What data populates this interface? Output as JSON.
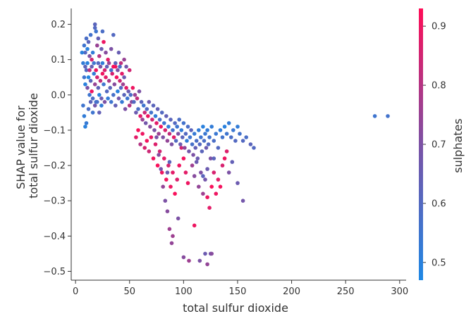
{
  "chart_data": {
    "type": "scatter",
    "title": "",
    "xlabel": "total sulfur dioxide",
    "ylabel_lines": [
      "SHAP value for",
      "total sulfur dioxide"
    ],
    "xlim": [
      -4,
      306
    ],
    "ylim": [
      -0.525,
      0.245
    ],
    "xticks": [
      0,
      50,
      100,
      150,
      200,
      250,
      300
    ],
    "xtick_labels": [
      "0",
      "50",
      "100",
      "150",
      "200",
      "250",
      "300"
    ],
    "yticks": [
      0.2,
      0.1,
      0.0,
      -0.1,
      -0.2,
      -0.3,
      -0.4,
      -0.5
    ],
    "ytick_labels": [
      "0.2",
      "0.1",
      "0.0",
      "−0.1",
      "−0.2",
      "−0.3",
      "−0.4",
      "−0.5"
    ],
    "colorbar": {
      "label": "sulphates",
      "range": [
        0.47,
        0.93
      ],
      "ticks": [
        0.5,
        0.6,
        0.7,
        0.8,
        0.9
      ],
      "tick_labels": [
        "0.5",
        "0.6",
        "0.7",
        "0.8",
        "0.9"
      ],
      "color_low": "#1e88e5",
      "color_high": "#ff0d57"
    },
    "grid": false,
    "points_xyc": [
      [
        8,
        0.14,
        0.55
      ],
      [
        9,
        0.12,
        0.6
      ],
      [
        10,
        0.16,
        0.58
      ],
      [
        11,
        0.13,
        0.5
      ],
      [
        12,
        0.15,
        0.62
      ],
      [
        13,
        0.11,
        0.7
      ],
      [
        14,
        0.17,
        0.56
      ],
      [
        15,
        0.1,
        0.85
      ],
      [
        16,
        0.12,
        0.52
      ],
      [
        18,
        0.2,
        0.62
      ],
      [
        19,
        0.18,
        0.55
      ],
      [
        20,
        0.14,
        0.75
      ],
      [
        22,
        0.11,
        0.8
      ],
      [
        24,
        0.13,
        0.66
      ],
      [
        26,
        0.15,
        0.9
      ],
      [
        28,
        0.12,
        0.72
      ],
      [
        30,
        0.1,
        0.88
      ],
      [
        33,
        0.13,
        0.7
      ],
      [
        35,
        0.17,
        0.6
      ],
      [
        37,
        0.08,
        0.9
      ],
      [
        40,
        0.12,
        0.65
      ],
      [
        42,
        0.09,
        0.82
      ],
      [
        45,
        0.1,
        0.75
      ],
      [
        47,
        0.08,
        0.68
      ],
      [
        50,
        0.07,
        0.85
      ],
      [
        18,
        0.19,
        0.6
      ],
      [
        21,
        0.16,
        0.64
      ],
      [
        25,
        0.18,
        0.58
      ],
      [
        6,
        0.12,
        0.5
      ],
      [
        7,
        0.09,
        0.52
      ],
      [
        8,
        0.05,
        0.55
      ],
      [
        9,
        0.03,
        0.5
      ],
      [
        10,
        0.07,
        0.6
      ],
      [
        11,
        0.02,
        0.7
      ],
      [
        12,
        0.05,
        0.48
      ],
      [
        13,
        0.0,
        0.55
      ],
      [
        14,
        0.04,
        0.62
      ],
      [
        15,
        0.01,
        0.9
      ],
      [
        16,
        -0.01,
        0.58
      ],
      [
        17,
        0.06,
        0.52
      ],
      [
        18,
        0.03,
        0.75
      ],
      [
        19,
        -0.02,
        0.56
      ],
      [
        20,
        0.05,
        0.85
      ],
      [
        21,
        0.02,
        0.63
      ],
      [
        22,
        0.0,
        0.5
      ],
      [
        23,
        0.04,
        0.82
      ],
      [
        24,
        -0.01,
        0.66
      ],
      [
        25,
        0.06,
        0.9
      ],
      [
        26,
        0.03,
        0.55
      ],
      [
        27,
        -0.02,
        0.7
      ],
      [
        28,
        0.05,
        0.88
      ],
      [
        29,
        0.01,
        0.6
      ],
      [
        30,
        -0.01,
        0.52
      ],
      [
        31,
        0.04,
        0.78
      ],
      [
        32,
        0.02,
        0.62
      ],
      [
        33,
        -0.02,
        0.55
      ],
      [
        34,
        0.06,
        0.86
      ],
      [
        35,
        0.0,
        0.57
      ],
      [
        36,
        0.03,
        0.72
      ],
      [
        37,
        -0.03,
        0.64
      ],
      [
        38,
        0.05,
        0.91
      ],
      [
        39,
        0.01,
        0.5
      ],
      [
        40,
        -0.01,
        0.68
      ],
      [
        41,
        0.04,
        0.84
      ],
      [
        42,
        0.02,
        0.6
      ],
      [
        43,
        -0.02,
        0.53
      ],
      [
        44,
        0.03,
        0.76
      ],
      [
        45,
        0.0,
        0.62
      ],
      [
        46,
        -0.04,
        0.7
      ],
      [
        47,
        0.02,
        0.88
      ],
      [
        48,
        -0.01,
        0.55
      ],
      [
        49,
        0.01,
        0.66
      ],
      [
        50,
        -0.03,
        0.8
      ],
      [
        51,
        0.0,
        0.58
      ],
      [
        52,
        -0.02,
        0.72
      ],
      [
        9,
        0.08,
        0.62
      ],
      [
        11,
        0.09,
        0.5
      ],
      [
        13,
        0.07,
        0.82
      ],
      [
        15,
        0.08,
        0.65
      ],
      [
        17,
        0.09,
        0.55
      ],
      [
        19,
        0.07,
        0.9
      ],
      [
        21,
        0.09,
        0.6
      ],
      [
        23,
        0.08,
        0.7
      ],
      [
        25,
        0.09,
        0.52
      ],
      [
        27,
        0.07,
        0.86
      ],
      [
        29,
        0.08,
        0.64
      ],
      [
        31,
        0.09,
        0.75
      ],
      [
        33,
        0.07,
        0.56
      ],
      [
        35,
        0.08,
        0.92
      ],
      [
        37,
        0.09,
        0.62
      ],
      [
        39,
        0.07,
        0.7
      ],
      [
        41,
        0.08,
        0.58
      ],
      [
        43,
        0.06,
        0.88
      ],
      [
        45,
        0.05,
        0.66
      ],
      [
        7,
        -0.03,
        0.55
      ],
      [
        8,
        -0.06,
        0.52
      ],
      [
        9,
        -0.09,
        0.5
      ],
      [
        10,
        -0.08,
        0.53
      ],
      [
        12,
        -0.04,
        0.58
      ],
      [
        14,
        -0.02,
        0.62
      ],
      [
        16,
        -0.05,
        0.55
      ],
      [
        18,
        -0.03,
        0.68
      ],
      [
        20,
        -0.02,
        0.57
      ],
      [
        22,
        -0.05,
        0.64
      ],
      [
        24,
        -0.03,
        0.52
      ],
      [
        53,
        0.02,
        0.9
      ],
      [
        54,
        -0.02,
        0.6
      ],
      [
        55,
        0.0,
        0.75
      ],
      [
        56,
        -0.05,
        0.66
      ],
      [
        57,
        -0.01,
        0.82
      ],
      [
        58,
        -0.04,
        0.58
      ],
      [
        59,
        0.01,
        0.7
      ],
      [
        60,
        -0.06,
        0.88
      ],
      [
        61,
        -0.02,
        0.62
      ],
      [
        62,
        -0.07,
        0.75
      ],
      [
        63,
        -0.03,
        0.55
      ],
      [
        64,
        -0.05,
        0.84
      ],
      [
        65,
        -0.08,
        0.68
      ],
      [
        66,
        -0.04,
        0.6
      ],
      [
        67,
        -0.06,
        0.9
      ],
      [
        68,
        -0.02,
        0.66
      ],
      [
        69,
        -0.09,
        0.72
      ],
      [
        70,
        -0.05,
        0.56
      ],
      [
        71,
        -0.07,
        0.85
      ],
      [
        72,
        -0.03,
        0.62
      ],
      [
        73,
        -0.1,
        0.7
      ],
      [
        74,
        -0.06,
        0.52
      ],
      [
        75,
        -0.08,
        0.88
      ],
      [
        76,
        -0.04,
        0.64
      ],
      [
        77,
        -0.11,
        0.76
      ],
      [
        78,
        -0.07,
        0.58
      ],
      [
        79,
        -0.09,
        0.9
      ],
      [
        80,
        -0.05,
        0.6
      ],
      [
        81,
        -0.12,
        0.7
      ],
      [
        82,
        -0.08,
        0.55
      ],
      [
        83,
        -0.1,
        0.86
      ],
      [
        84,
        -0.06,
        0.64
      ],
      [
        85,
        -0.13,
        0.74
      ],
      [
        86,
        -0.09,
        0.52
      ],
      [
        87,
        -0.11,
        0.82
      ],
      [
        88,
        -0.07,
        0.62
      ],
      [
        89,
        -0.14,
        0.7
      ],
      [
        90,
        -0.1,
        0.56
      ],
      [
        91,
        -0.12,
        0.88
      ],
      [
        92,
        -0.08,
        0.6
      ],
      [
        56,
        -0.12,
        0.88
      ],
      [
        58,
        -0.1,
        0.92
      ],
      [
        60,
        -0.14,
        0.8
      ],
      [
        62,
        -0.11,
        0.9
      ],
      [
        64,
        -0.15,
        0.86
      ],
      [
        66,
        -0.13,
        0.91
      ],
      [
        68,
        -0.16,
        0.84
      ],
      [
        70,
        -0.12,
        0.89
      ],
      [
        72,
        -0.18,
        0.9
      ],
      [
        74,
        -0.14,
        0.87
      ],
      [
        76,
        -0.2,
        0.92
      ],
      [
        78,
        -0.16,
        0.85
      ],
      [
        80,
        -0.22,
        0.9
      ],
      [
        82,
        -0.18,
        0.88
      ],
      [
        84,
        -0.24,
        0.91
      ],
      [
        86,
        -0.2,
        0.86
      ],
      [
        88,
        -0.26,
        0.9
      ],
      [
        90,
        -0.22,
        0.88
      ],
      [
        92,
        -0.28,
        0.92
      ],
      [
        94,
        -0.24,
        0.87
      ],
      [
        96,
        -0.2,
        0.9
      ],
      [
        98,
        -0.15,
        0.86
      ],
      [
        100,
        -0.18,
        0.91
      ],
      [
        102,
        -0.22,
        0.88
      ],
      [
        104,
        -0.25,
        0.9
      ],
      [
        75,
        -0.12,
        0.7
      ],
      [
        77,
        -0.17,
        0.72
      ],
      [
        79,
        -0.21,
        0.68
      ],
      [
        81,
        -0.26,
        0.74
      ],
      [
        83,
        -0.3,
        0.7
      ],
      [
        85,
        -0.33,
        0.72
      ],
      [
        87,
        -0.38,
        0.76
      ],
      [
        89,
        -0.42,
        0.74
      ],
      [
        85,
        -0.22,
        0.66
      ],
      [
        87,
        -0.19,
        0.62
      ],
      [
        93,
        -0.13,
        0.6
      ],
      [
        94,
        -0.09,
        0.55
      ],
      [
        95,
        -0.11,
        0.7
      ],
      [
        96,
        -0.07,
        0.58
      ],
      [
        97,
        -0.14,
        0.66
      ],
      [
        98,
        -0.1,
        0.52
      ],
      [
        99,
        -0.12,
        0.62
      ],
      [
        100,
        -0.08,
        0.56
      ],
      [
        101,
        -0.15,
        0.74
      ],
      [
        102,
        -0.11,
        0.6
      ],
      [
        103,
        -0.13,
        0.52
      ],
      [
        104,
        -0.09,
        0.58
      ],
      [
        105,
        -0.16,
        0.68
      ],
      [
        106,
        -0.12,
        0.55
      ],
      [
        107,
        -0.1,
        0.62
      ],
      [
        108,
        -0.14,
        0.57
      ],
      [
        109,
        -0.17,
        0.7
      ],
      [
        110,
        -0.11,
        0.53
      ],
      [
        111,
        -0.15,
        0.64
      ],
      [
        112,
        -0.13,
        0.58
      ],
      [
        113,
        -0.18,
        0.66
      ],
      [
        114,
        -0.1,
        0.52
      ],
      [
        115,
        -0.14,
        0.6
      ],
      [
        116,
        -0.12,
        0.55
      ],
      [
        117,
        -0.16,
        0.62
      ],
      [
        118,
        -0.09,
        0.5
      ],
      [
        119,
        -0.13,
        0.58
      ],
      [
        120,
        -0.11,
        0.54
      ],
      [
        121,
        -0.15,
        0.66
      ],
      [
        122,
        -0.1,
        0.52
      ],
      [
        123,
        -0.14,
        0.6
      ],
      [
        124,
        -0.12,
        0.56
      ],
      [
        125,
        -0.18,
        0.7
      ],
      [
        126,
        -0.09,
        0.52
      ],
      [
        128,
        -0.13,
        0.58
      ],
      [
        130,
        -0.11,
        0.54
      ],
      [
        132,
        -0.15,
        0.6
      ],
      [
        134,
        -0.1,
        0.52
      ],
      [
        136,
        -0.12,
        0.56
      ],
      [
        138,
        -0.09,
        0.5
      ],
      [
        140,
        -0.11,
        0.55
      ],
      [
        142,
        -0.08,
        0.52
      ],
      [
        144,
        -0.12,
        0.58
      ],
      [
        146,
        -0.1,
        0.54
      ],
      [
        148,
        -0.13,
        0.6
      ],
      [
        150,
        -0.09,
        0.52
      ],
      [
        152,
        -0.11,
        0.56
      ],
      [
        155,
        -0.13,
        0.6
      ],
      [
        158,
        -0.12,
        0.58
      ],
      [
        162,
        -0.14,
        0.62
      ],
      [
        165,
        -0.15,
        0.6
      ],
      [
        108,
        -0.2,
        0.76
      ],
      [
        110,
        -0.23,
        0.72
      ],
      [
        112,
        -0.19,
        0.66
      ],
      [
        114,
        -0.26,
        0.74
      ],
      [
        116,
        -0.22,
        0.7
      ],
      [
        118,
        -0.28,
        0.76
      ],
      [
        120,
        -0.24,
        0.68
      ],
      [
        122,
        -0.29,
        0.9
      ],
      [
        124,
        -0.32,
        0.88
      ],
      [
        126,
        -0.26,
        0.92
      ],
      [
        128,
        -0.22,
        0.86
      ],
      [
        130,
        -0.28,
        0.9
      ],
      [
        132,
        -0.24,
        0.88
      ],
      [
        134,
        -0.26,
        0.91
      ],
      [
        136,
        -0.2,
        0.86
      ],
      [
        138,
        -0.18,
        0.9
      ],
      [
        140,
        -0.16,
        0.87
      ],
      [
        142,
        -0.22,
        0.7
      ],
      [
        145,
        -0.19,
        0.64
      ],
      [
        150,
        -0.25,
        0.66
      ],
      [
        155,
        -0.3,
        0.68
      ],
      [
        128,
        -0.18,
        0.62
      ],
      [
        122,
        -0.21,
        0.66
      ],
      [
        118,
        -0.23,
        0.62
      ],
      [
        100,
        -0.46,
        0.72
      ],
      [
        105,
        -0.47,
        0.76
      ],
      [
        110,
        -0.37,
        0.9
      ],
      [
        115,
        -0.47,
        0.7
      ],
      [
        120,
        -0.45,
        0.66
      ],
      [
        122,
        -0.48,
        0.74
      ],
      [
        125,
        -0.45,
        0.68
      ],
      [
        126,
        -0.45,
        0.72
      ],
      [
        90,
        -0.4,
        0.76
      ],
      [
        95,
        -0.35,
        0.7
      ],
      [
        277,
        -0.06,
        0.55
      ],
      [
        289,
        -0.06,
        0.56
      ]
    ]
  }
}
